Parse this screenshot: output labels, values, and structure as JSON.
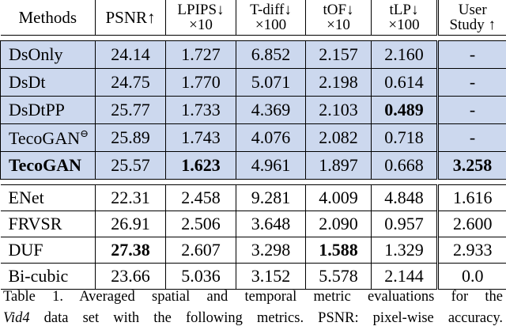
{
  "table": {
    "headers": [
      {
        "line1": "Methods",
        "line2": ""
      },
      {
        "line1": "PSNR↑",
        "line2": ""
      },
      {
        "line1": "LPIPS↓",
        "line2": "×10"
      },
      {
        "line1": "T-diff↓",
        "line2": "×100"
      },
      {
        "line1": "tOF↓",
        "line2": "×10"
      },
      {
        "line1": "tLP↓",
        "line2": "×100"
      },
      {
        "line1": "User",
        "line2": "Study ↑"
      }
    ],
    "group1": [
      {
        "method": "DsOnly",
        "sup": "",
        "values": [
          "24.14",
          "1.727",
          "6.852",
          "2.157",
          "2.160",
          "-"
        ]
      },
      {
        "method": "DsDt",
        "sup": "",
        "values": [
          "24.75",
          "1.770",
          "5.071",
          "2.198",
          "0.614",
          "-"
        ]
      },
      {
        "method": "DsDtPP",
        "sup": "",
        "values": [
          "25.77",
          "1.733",
          "4.369",
          "2.103",
          "0.489",
          "-"
        ]
      },
      {
        "method": "TecoGAN",
        "sup": "⊖",
        "values": [
          "25.89",
          "1.743",
          "4.076",
          "2.082",
          "0.718",
          "-"
        ]
      },
      {
        "method": "TecoGAN",
        "sup": "",
        "values": [
          "25.57",
          "1.623",
          "4.961",
          "1.897",
          "0.668",
          "3.258"
        ]
      }
    ],
    "group2": [
      {
        "method": "ENet",
        "sup": "",
        "values": [
          "22.31",
          "2.458",
          "9.281",
          "4.009",
          "4.848",
          "1.616"
        ]
      },
      {
        "method": "FRVSR",
        "sup": "",
        "values": [
          "26.91",
          "2.506",
          "3.648",
          "2.090",
          "0.957",
          "2.600"
        ]
      },
      {
        "method": "DUF",
        "sup": "",
        "values": [
          "27.38",
          "2.607",
          "3.298",
          "1.588",
          "1.329",
          "2.933"
        ]
      },
      {
        "method": "Bi-cubic",
        "sup": "",
        "values": [
          "23.66",
          "5.036",
          "3.152",
          "5.578",
          "2.144",
          "0.0"
        ]
      }
    ]
  },
  "caption": {
    "line1": "Table 1. Averaged spatial and temporal metric evaluations for the",
    "line2_italic": "Vid4",
    "line2_rest": " data set with the following metrics. PSNR: pixel-wise accuracy."
  },
  "colors": {
    "highlight_bg": "#ccd8ee",
    "text": "#000000"
  }
}
